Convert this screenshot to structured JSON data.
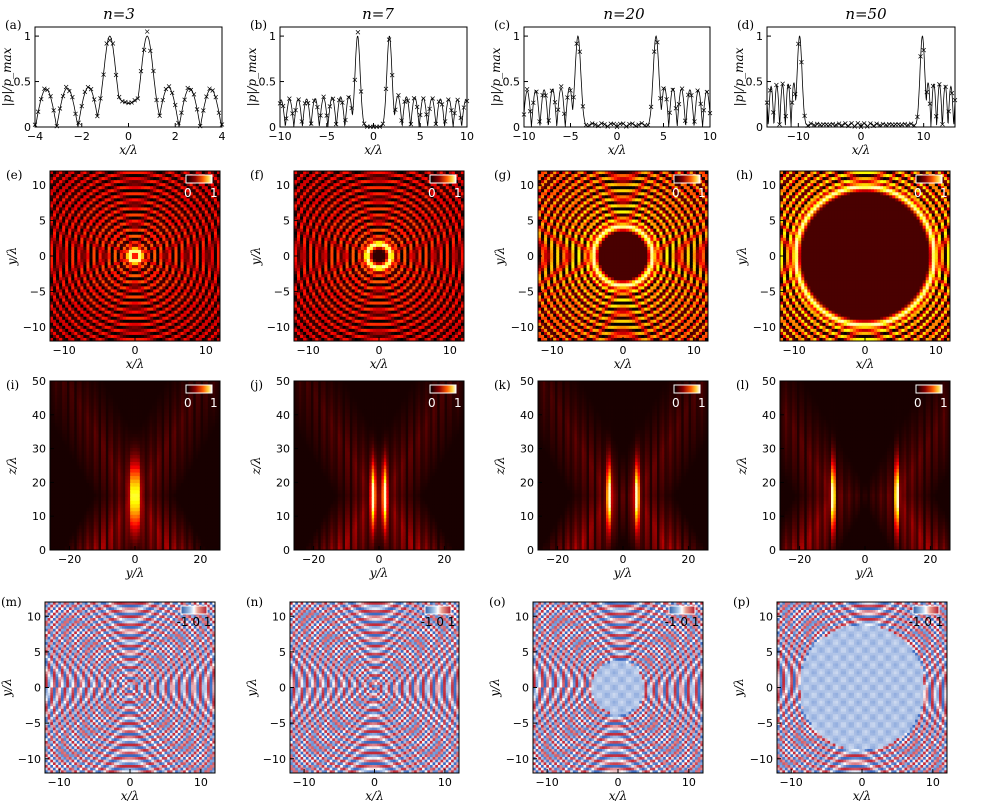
{
  "columns": [
    {
      "title": "n=3"
    },
    {
      "title": "n=7"
    },
    {
      "title": "n=20"
    },
    {
      "title": "n=50"
    }
  ],
  "panel_labels": [
    "(a)",
    "(b)",
    "(c)",
    "(d)",
    "(e)",
    "(f)",
    "(g)",
    "(h)",
    "(i)",
    "(j)",
    "(k)",
    "(l)",
    "(m)",
    "(n)",
    "(o)",
    "(p)"
  ],
  "colorbar_labels": {
    "intensity": [
      "0",
      "1"
    ],
    "phase": "-1 0 1"
  },
  "colors": {
    "hot_dark": "#1a0000",
    "hot_mid": "#b41e00",
    "hot_bright": "#ffdc50",
    "phase_blue": "#3e7fc1",
    "phase_red": "#c0392b"
  },
  "chart_data": [
    {
      "type": "line",
      "panel": "(a)",
      "xlabel": "x/λ",
      "ylabel": "|p|/p_max",
      "xlim": [
        -4,
        4
      ],
      "ylim": [
        0,
        1.1
      ],
      "xticks": [
        "-4",
        "-2",
        "0",
        "2",
        "4"
      ],
      "yticks": [
        "0",
        "0.5",
        "1"
      ],
      "peaks": [
        -0.8,
        0.8
      ],
      "center_min": 0.26,
      "side_level": 0.45,
      "series": [
        {
          "style": "line + x markers"
        }
      ]
    },
    {
      "type": "line",
      "panel": "(b)",
      "xlabel": "x/λ",
      "ylabel": "|p|/p_max",
      "xlim": [
        -10,
        10
      ],
      "ylim": [
        0,
        1.1
      ],
      "xticks": [
        "-10",
        "-5",
        "0",
        "5",
        "10"
      ],
      "yticks": [
        "0",
        "0.5",
        "1"
      ],
      "peaks": [
        -1.7,
        1.7
      ],
      "center_min": 0.03,
      "side_level": 0.35,
      "series": [
        {
          "style": "line + x markers"
        }
      ]
    },
    {
      "type": "line",
      "panel": "(c)",
      "xlabel": "x/λ",
      "ylabel": "|p|/p_max",
      "xlim": [
        -10,
        10
      ],
      "ylim": [
        0,
        1.1
      ],
      "xticks": [
        "-10",
        "-5",
        "0",
        "5",
        "10"
      ],
      "yticks": [
        "0",
        "0.5",
        "1"
      ],
      "peaks": [
        -4.2,
        4.2
      ],
      "center_min": 0.03,
      "side_level": 0.45,
      "series": [
        {
          "style": "line + x markers"
        }
      ]
    },
    {
      "type": "line",
      "panel": "(d)",
      "xlabel": "x/λ",
      "ylabel": "|p|/p_max",
      "xlim": [
        -15,
        15
      ],
      "ylim": [
        0,
        1.1
      ],
      "xticks": [
        "-10",
        "0",
        "10"
      ],
      "yticks": [
        "0",
        "0.5",
        "1"
      ],
      "peaks": [
        -9.8,
        9.8
      ],
      "center_min": 0.03,
      "side_level": 0.5,
      "series": [
        {
          "style": "line + x markers"
        }
      ]
    },
    {
      "type": "heatmap",
      "panel": "(e)",
      "colormap": "hot",
      "xlabel": "x/λ",
      "ylabel": "y/λ",
      "xlim": [
        -12,
        12
      ],
      "ylim": [
        -12,
        12
      ],
      "xticks": [
        "-10",
        "0",
        "10"
      ],
      "yticks": [
        "-10",
        "-5",
        "0",
        "5",
        "10"
      ],
      "clim": [
        0,
        1
      ],
      "ring_radius": 0.8
    },
    {
      "type": "heatmap",
      "panel": "(f)",
      "colormap": "hot",
      "xlabel": "x/λ",
      "ylabel": "y/λ",
      "xlim": [
        -12,
        12
      ],
      "ylim": [
        -12,
        12
      ],
      "xticks": [
        "-10",
        "0",
        "10"
      ],
      "yticks": [
        "-10",
        "-5",
        "0",
        "5",
        "10"
      ],
      "clim": [
        0,
        1
      ],
      "ring_radius": 1.7
    },
    {
      "type": "heatmap",
      "panel": "(g)",
      "colormap": "hot",
      "xlabel": "x/λ",
      "ylabel": "y/λ",
      "xlim": [
        -12,
        12
      ],
      "ylim": [
        -12,
        12
      ],
      "xticks": [
        "-10",
        "0",
        "10"
      ],
      "yticks": [
        "-10",
        "-5",
        "0",
        "5",
        "10"
      ],
      "clim": [
        0,
        1
      ],
      "ring_radius": 4.2
    },
    {
      "type": "heatmap",
      "panel": "(h)",
      "colormap": "hot",
      "xlabel": "x/λ",
      "ylabel": "y/λ",
      "xlim": [
        -12,
        12
      ],
      "ylim": [
        -12,
        12
      ],
      "xticks": [
        "-10",
        "0",
        "10"
      ],
      "yticks": [
        "-10",
        "-5",
        "0",
        "5",
        "10"
      ],
      "clim": [
        0,
        1
      ],
      "ring_radius": 9.8
    },
    {
      "type": "heatmap",
      "panel": "(i)",
      "colormap": "hot",
      "xlabel": "y/λ",
      "ylabel": "z/λ",
      "xlim": [
        -26,
        26
      ],
      "ylim": [
        0,
        50
      ],
      "xticks": [
        "-20",
        "0",
        "20"
      ],
      "yticks": [
        "0",
        "10",
        "20",
        "30",
        "40",
        "50"
      ],
      "clim": [
        0,
        1
      ],
      "beam_offset": 0.8
    },
    {
      "type": "heatmap",
      "panel": "(j)",
      "colormap": "hot",
      "xlabel": "y/λ",
      "ylabel": "z/λ",
      "xlim": [
        -26,
        26
      ],
      "ylim": [
        0,
        50
      ],
      "xticks": [
        "-20",
        "0",
        "20"
      ],
      "yticks": [
        "0",
        "10",
        "20",
        "30",
        "40",
        "50"
      ],
      "clim": [
        0,
        1
      ],
      "beam_offset": 1.7
    },
    {
      "type": "heatmap",
      "panel": "(k)",
      "colormap": "hot",
      "xlabel": "y/λ",
      "ylabel": "z/λ",
      "xlim": [
        -26,
        26
      ],
      "ylim": [
        0,
        50
      ],
      "xticks": [
        "-20",
        "0",
        "20"
      ],
      "yticks": [
        "0",
        "10",
        "20",
        "30",
        "40",
        "50"
      ],
      "clim": [
        0,
        1
      ],
      "beam_offset": 4.2
    },
    {
      "type": "heatmap",
      "panel": "(l)",
      "colormap": "hot",
      "xlabel": "y/λ",
      "ylabel": "z/λ",
      "xlim": [
        -26,
        26
      ],
      "ylim": [
        0,
        50
      ],
      "xticks": [
        "-20",
        "0",
        "20"
      ],
      "yticks": [
        "0",
        "10",
        "20",
        "30",
        "40",
        "50"
      ],
      "clim": [
        0,
        1
      ],
      "beam_offset": 9.8
    },
    {
      "type": "heatmap",
      "panel": "(m)",
      "colormap": "diverging",
      "xlabel": "x/λ",
      "ylabel": "y/λ",
      "xlim": [
        -12,
        12
      ],
      "ylim": [
        -12,
        12
      ],
      "xticks": [
        "-10",
        "0",
        "10"
      ],
      "yticks": [
        "-10",
        "-5",
        "0",
        "5",
        "10"
      ],
      "clim": [
        -1,
        1
      ],
      "topological_charge": 3,
      "core_radius": 0.8
    },
    {
      "type": "heatmap",
      "panel": "(n)",
      "colormap": "diverging",
      "xlabel": "x/λ",
      "ylabel": "y/λ",
      "xlim": [
        -12,
        12
      ],
      "ylim": [
        -12,
        12
      ],
      "xticks": [
        "-10",
        "0",
        "10"
      ],
      "yticks": [
        "-10",
        "-5",
        "0",
        "5",
        "10"
      ],
      "clim": [
        -1,
        1
      ],
      "topological_charge": 7,
      "core_radius": 1.7
    },
    {
      "type": "heatmap",
      "panel": "(o)",
      "colormap": "diverging",
      "xlabel": "x/λ",
      "ylabel": "y/λ",
      "xlim": [
        -12,
        12
      ],
      "ylim": [
        -12,
        12
      ],
      "xticks": [
        "-10",
        "0",
        "10"
      ],
      "yticks": [
        "-10",
        "-5",
        "0",
        "5",
        "10"
      ],
      "clim": [
        -1,
        1
      ],
      "topological_charge": 20,
      "core_radius": 4.2
    },
    {
      "type": "heatmap",
      "panel": "(p)",
      "colormap": "diverging",
      "xlabel": "x/λ",
      "ylabel": "y/λ",
      "xlim": [
        -12,
        12
      ],
      "ylim": [
        -12,
        12
      ],
      "xticks": [
        "-10",
        "0",
        "10"
      ],
      "yticks": [
        "-10",
        "-5",
        "0",
        "5",
        "10"
      ],
      "clim": [
        -1,
        1
      ],
      "topological_charge": 50,
      "core_radius": 9.8
    }
  ]
}
